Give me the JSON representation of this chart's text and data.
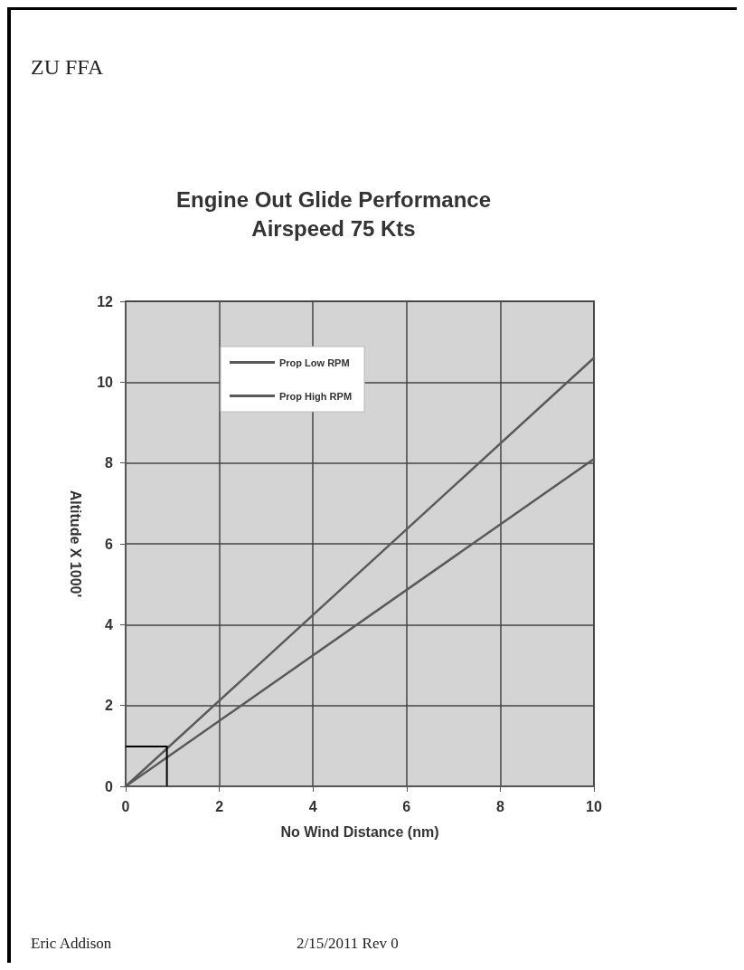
{
  "chart_data": {
    "type": "line",
    "title": "Engine Out Glide Performance",
    "subtitle": "Airspeed 75 Kts",
    "xlabel": "No Wind Distance (nm)",
    "ylabel": "Altitude X 1000'",
    "annotations": [
      "ZU FFA",
      "Eric Addison",
      "2/15/2011 Rev 0"
    ],
    "x": [
      0,
      10
    ],
    "series": [
      {
        "name": "Prop Low RPM",
        "color": "#5a5a5a",
        "values": [
          0,
          8.1
        ]
      },
      {
        "name": "Prop High RPM",
        "color": "#5a5a5a",
        "values": [
          0,
          10.6
        ]
      }
    ],
    "xlim": [
      0,
      10
    ],
    "xticks": [
      0,
      2,
      4,
      6,
      8,
      10
    ],
    "ylim": [
      0,
      12
    ],
    "yticks": [
      0,
      2,
      4,
      6,
      8,
      10,
      12
    ],
    "grid": true,
    "legend": "top left",
    "marker": "none",
    "line_style": "solid"
  }
}
